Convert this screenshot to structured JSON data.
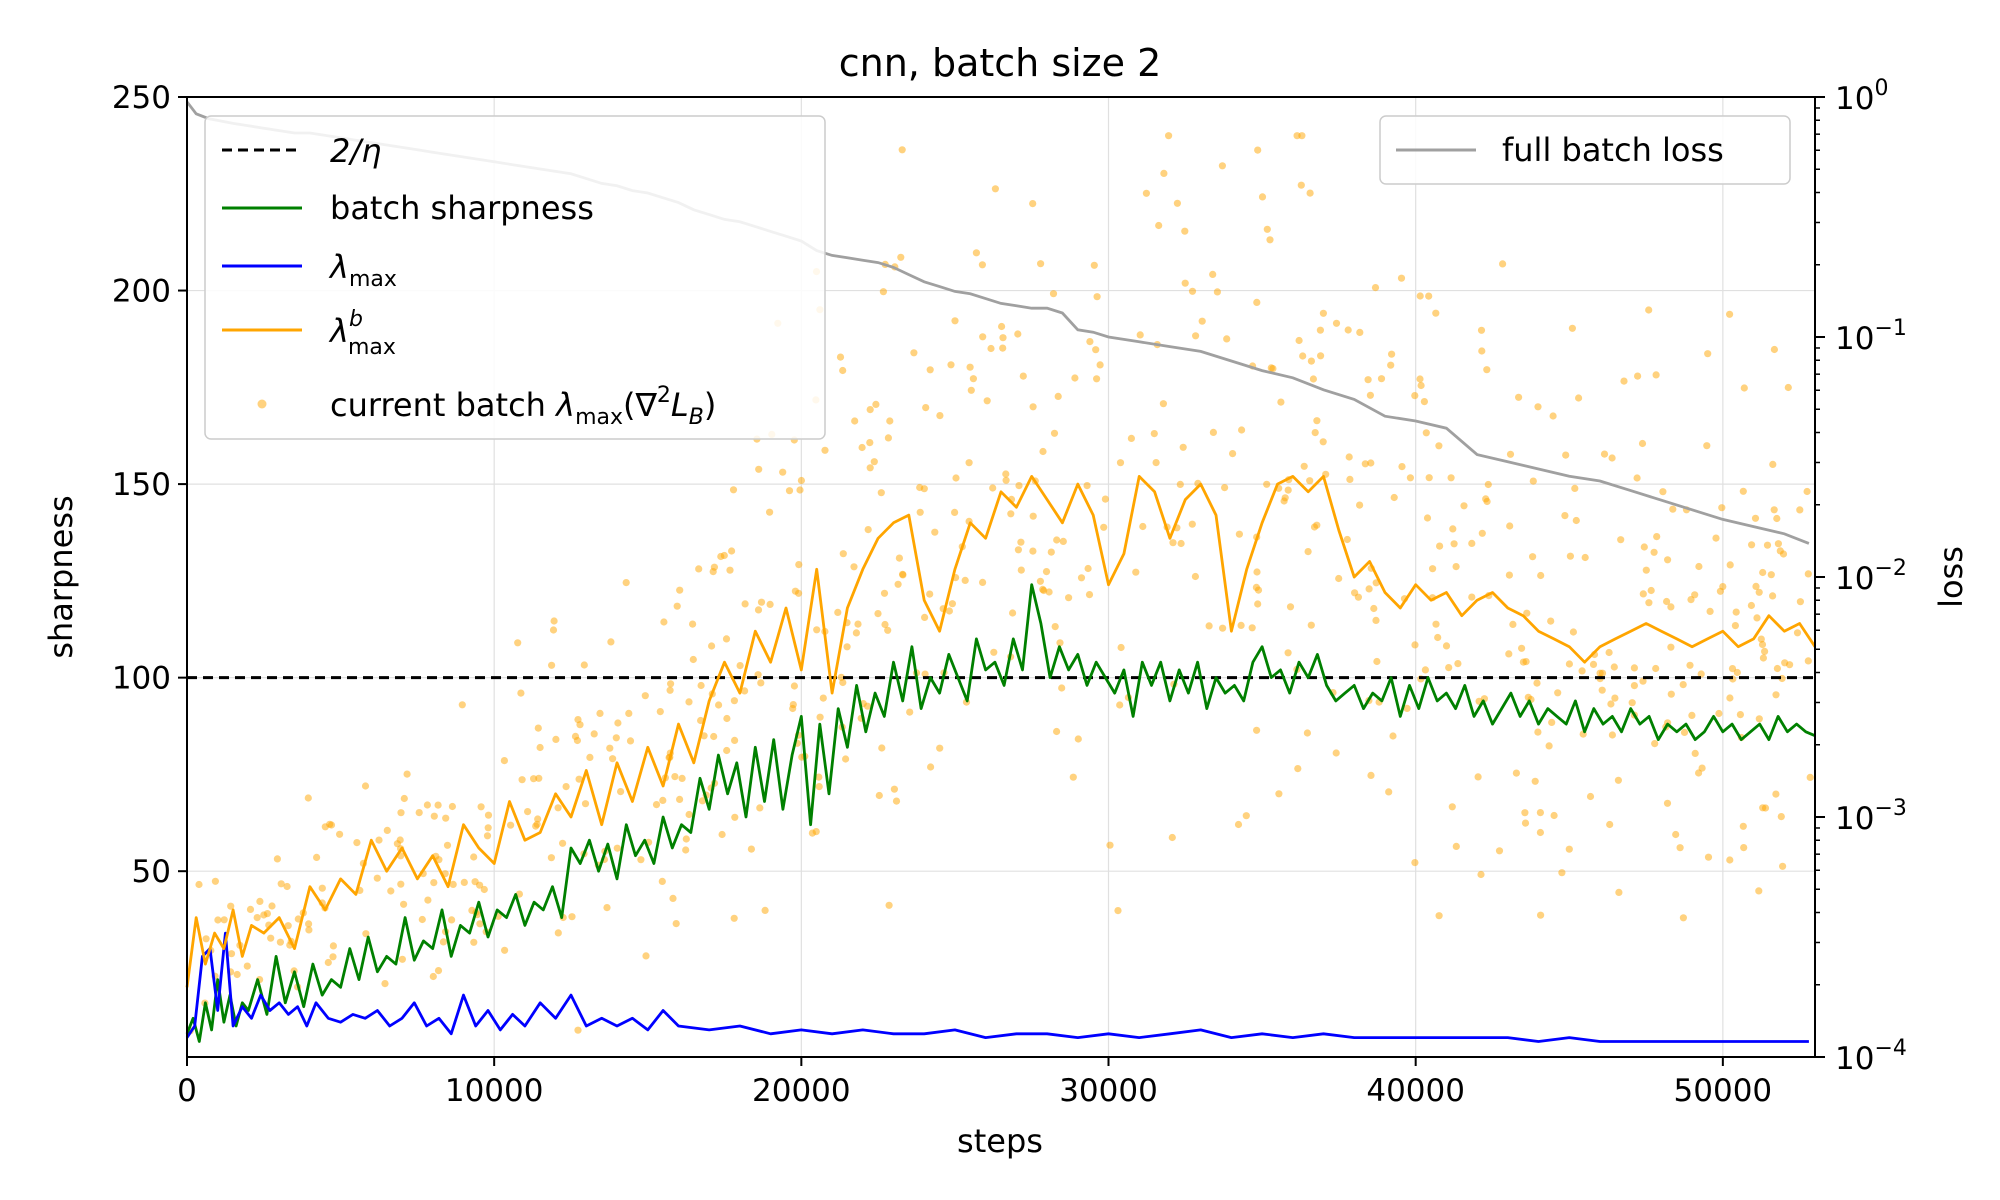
{
  "chart_data": {
    "type": "line",
    "title": "cnn, batch size 2",
    "xlabel": "steps",
    "ylabel": "sharpness",
    "y2label": "loss",
    "xlim": [
      0,
      53000
    ],
    "ylim": [
      2,
      250
    ],
    "y2lim_log10": [
      -4,
      0
    ],
    "x_ticks": [
      "0",
      "10000",
      "20000",
      "30000",
      "40000",
      "50000"
    ],
    "y_ticks": [
      "50",
      "100",
      "150",
      "200",
      "250"
    ],
    "y2_ticks": [
      {
        "base": "10",
        "exp": "0"
      },
      {
        "base": "10",
        "exp": "−1"
      },
      {
        "base": "10",
        "exp": "−2"
      },
      {
        "base": "10",
        "exp": "−3"
      },
      {
        "base": "10",
        "exp": "−4"
      }
    ],
    "grid": true,
    "legend_left": {
      "placement": "upper-left",
      "entries": [
        {
          "key": "threshold",
          "label": "2/η",
          "color": "#000000"
        },
        {
          "key": "batch_sharpness",
          "label": "batch sharpness",
          "color": "#008000"
        },
        {
          "key": "lambda_max",
          "label": "λ",
          "sub": "max",
          "color": "#0000ff"
        },
        {
          "key": "lambda_b_max",
          "label": "λ",
          "sub": "max",
          "sup": "b",
          "color": "#ffa500"
        },
        {
          "key": "current_batch",
          "label": "current batch ",
          "label2": "λ",
          "sub": "max",
          "label3": "(∇",
          "sup2": "2",
          "label4": "L",
          "sub2": "B",
          "label5": ")",
          "color": "#ffa500"
        }
      ]
    },
    "legend_right": {
      "placement": "upper-right",
      "entries": [
        {
          "key": "full_batch_loss",
          "label": "full batch loss",
          "color": "#a0a0a0"
        }
      ]
    },
    "threshold_value": 100,
    "series": [
      {
        "name": "batch sharpness",
        "color": "#008000",
        "x": [
          0,
          200,
          400,
          600,
          800,
          1000,
          1200,
          1400,
          1600,
          1800,
          2000,
          2300,
          2600,
          2900,
          3200,
          3500,
          3800,
          4100,
          4400,
          4700,
          5000,
          5300,
          5600,
          5900,
          6200,
          6500,
          6800,
          7100,
          7400,
          7700,
          8000,
          8300,
          8600,
          8900,
          9200,
          9500,
          9800,
          10100,
          10400,
          10700,
          11000,
          11300,
          11600,
          11900,
          12200,
          12500,
          12800,
          13100,
          13400,
          13700,
          14000,
          14300,
          14600,
          14900,
          15200,
          15500,
          15800,
          16100,
          16400,
          16700,
          17000,
          17300,
          17600,
          17900,
          18200,
          18500,
          18800,
          19100,
          19400,
          19700,
          20000,
          20300,
          20600,
          20900,
          21200,
          21500,
          21800,
          22100,
          22400,
          22700,
          23000,
          23300,
          23600,
          23900,
          24200,
          24500,
          24800,
          25100,
          25400,
          25700,
          26000,
          26300,
          26600,
          26900,
          27200,
          27500,
          27800,
          28100,
          28400,
          28700,
          29000,
          29300,
          29600,
          29900,
          30200,
          30500,
          30800,
          31100,
          31400,
          31700,
          32000,
          32300,
          32600,
          32900,
          33200,
          33500,
          33800,
          34100,
          34400,
          34700,
          35000,
          35300,
          35600,
          35900,
          36200,
          36500,
          36800,
          37100,
          37400,
          37700,
          38000,
          38300,
          38600,
          38900,
          39200,
          39500,
          39800,
          40100,
          40400,
          40700,
          41000,
          41300,
          41600,
          41900,
          42200,
          42500,
          42800,
          43100,
          43400,
          43700,
          44000,
          44300,
          44600,
          44900,
          45200,
          45500,
          45800,
          46100,
          46400,
          46700,
          47000,
          47300,
          47600,
          47900,
          48200,
          48500,
          48800,
          49100,
          49400,
          49700,
          50000,
          50300,
          50600,
          50900,
          51200,
          51500,
          51800,
          52100,
          52400,
          52700,
          53000
        ],
        "values": [
          8,
          12,
          6,
          16,
          9,
          22,
          11,
          18,
          10,
          16,
          14,
          22,
          13,
          28,
          16,
          24,
          15,
          26,
          18,
          22,
          20,
          30,
          22,
          33,
          24,
          28,
          26,
          38,
          27,
          32,
          30,
          40,
          28,
          36,
          34,
          42,
          33,
          40,
          38,
          44,
          36,
          42,
          40,
          46,
          38,
          56,
          52,
          58,
          50,
          57,
          48,
          62,
          54,
          58,
          52,
          64,
          56,
          62,
          60,
          74,
          66,
          80,
          70,
          78,
          64,
          82,
          68,
          84,
          66,
          80,
          90,
          62,
          88,
          70,
          92,
          82,
          98,
          86,
          96,
          90,
          104,
          94,
          108,
          92,
          100,
          96,
          106,
          100,
          94,
          110,
          102,
          104,
          98,
          110,
          102,
          124,
          114,
          100,
          108,
          102,
          106,
          98,
          104,
          100,
          96,
          102,
          90,
          104,
          98,
          104,
          94,
          102,
          96,
          104,
          92,
          100,
          96,
          98,
          94,
          104,
          108,
          100,
          102,
          96,
          104,
          100,
          106,
          98,
          94,
          96,
          98,
          92,
          96,
          94,
          100,
          90,
          98,
          92,
          100,
          94,
          96,
          92,
          98,
          90,
          94,
          88,
          92,
          96,
          90,
          94,
          88,
          92,
          90,
          88,
          94,
          86,
          92,
          88,
          90,
          86,
          92,
          88,
          90,
          84,
          88,
          86,
          88,
          84,
          86,
          90,
          86,
          88,
          84,
          86,
          88,
          84,
          90,
          86,
          88,
          86,
          85
        ],
        "_note": "noisy green line (batch sharpness)"
      },
      {
        "name": "λmax",
        "color": "#0000ff",
        "x": [
          0,
          250,
          500,
          750,
          1000,
          1250,
          1500,
          1800,
          2100,
          2400,
          2700,
          3000,
          3300,
          3600,
          3900,
          4200,
          4600,
          5000,
          5400,
          5800,
          6200,
          6600,
          7000,
          7400,
          7800,
          8200,
          8600,
          9000,
          9400,
          9800,
          10200,
          10600,
          11000,
          11500,
          12000,
          12500,
          13000,
          13500,
          14000,
          14500,
          15000,
          15500,
          16000,
          17000,
          18000,
          19000,
          20000,
          21000,
          22000,
          23000,
          24000,
          25000,
          26000,
          27000,
          28000,
          29000,
          30000,
          31000,
          32000,
          33000,
          34000,
          35000,
          36000,
          37000,
          38000,
          39000,
          40000,
          41000,
          42000,
          43000,
          44000,
          45000,
          46000,
          47000,
          48000,
          49000,
          50000,
          51000,
          52000,
          52800
        ],
        "values": [
          7,
          10,
          28,
          30,
          14,
          34,
          10,
          15,
          12,
          18,
          14,
          16,
          13,
          15,
          10,
          16,
          12,
          11,
          13,
          12,
          14,
          10,
          12,
          16,
          10,
          12,
          8,
          18,
          10,
          14,
          9,
          13,
          10,
          16,
          12,
          18,
          10,
          12,
          10,
          12,
          9,
          14,
          10,
          9,
          10,
          8,
          9,
          8,
          9,
          8,
          8,
          9,
          7,
          8,
          8,
          7,
          8,
          7,
          8,
          9,
          7,
          8,
          7,
          8,
          7,
          7,
          7,
          7,
          7,
          7,
          6,
          7,
          6,
          6,
          6,
          6,
          6,
          6,
          6,
          6
        ],
        "_note": "blue line (λmax)"
      },
      {
        "name": "λbmax",
        "color": "#ffa500",
        "x": [
          0,
          300,
          600,
          900,
          1200,
          1500,
          1800,
          2100,
          2500,
          3000,
          3500,
          4000,
          4500,
          5000,
          5500,
          6000,
          6500,
          7000,
          7500,
          8000,
          8500,
          9000,
          9500,
          10000,
          10500,
          11000,
          11500,
          12000,
          12500,
          13000,
          13500,
          14000,
          14500,
          15000,
          15500,
          16000,
          16500,
          17000,
          17500,
          18000,
          18500,
          19000,
          19500,
          20000,
          20500,
          21000,
          21500,
          22000,
          22500,
          23000,
          23500,
          24000,
          24500,
          25000,
          25500,
          26000,
          26500,
          27000,
          27500,
          28000,
          28500,
          29000,
          29500,
          30000,
          30500,
          31000,
          31500,
          32000,
          32500,
          33000,
          33500,
          34000,
          34500,
          35000,
          35500,
          36000,
          36500,
          37000,
          37500,
          38000,
          38500,
          39000,
          39500,
          40000,
          40500,
          41000,
          41500,
          42000,
          42500,
          43000,
          43500,
          44000,
          44500,
          45000,
          45500,
          46000,
          46500,
          47000,
          47500,
          48000,
          48500,
          49000,
          49500,
          50000,
          50500,
          51000,
          51500,
          52000,
          52500,
          53000
        ],
        "values": [
          20,
          38,
          26,
          34,
          30,
          40,
          28,
          36,
          34,
          38,
          30,
          46,
          40,
          48,
          44,
          58,
          50,
          56,
          48,
          54,
          46,
          62,
          56,
          52,
          68,
          58,
          60,
          70,
          64,
          76,
          62,
          78,
          68,
          82,
          72,
          88,
          78,
          94,
          104,
          96,
          112,
          104,
          118,
          102,
          128,
          96,
          118,
          128,
          136,
          140,
          142,
          120,
          112,
          128,
          140,
          136,
          148,
          144,
          152,
          146,
          140,
          150,
          142,
          124,
          132,
          152,
          148,
          136,
          146,
          150,
          142,
          112,
          128,
          140,
          150,
          152,
          148,
          152,
          138,
          126,
          130,
          122,
          118,
          124,
          120,
          122,
          116,
          120,
          122,
          118,
          116,
          112,
          110,
          108,
          104,
          108,
          110,
          112,
          114,
          112,
          110,
          108,
          110,
          112,
          108,
          110,
          116,
          112,
          114,
          108
        ],
        "_note": "orange line (λbmax)"
      }
    ],
    "full_batch_loss": {
      "name": "full batch loss",
      "color": "#a0a0a0",
      "axis": "right-log",
      "x": [
        0,
        300,
        700,
        1100,
        1500,
        2000,
        2500,
        3000,
        3500,
        4000,
        4500,
        5000,
        5500,
        6000,
        6500,
        7000,
        7500,
        8000,
        8500,
        9000,
        9500,
        10000,
        10500,
        11000,
        11500,
        12000,
        12500,
        13000,
        13500,
        14000,
        14500,
        15000,
        15500,
        16000,
        16500,
        17000,
        17500,
        18000,
        18500,
        19000,
        19500,
        20000,
        20500,
        21000,
        21500,
        22000,
        22500,
        23000,
        23500,
        24000,
        24500,
        25000,
        25500,
        26000,
        26500,
        27000,
        27500,
        28000,
        28500,
        29000,
        29500,
        30000,
        31000,
        32000,
        33000,
        34000,
        35000,
        36000,
        37000,
        38000,
        39000,
        40000,
        41000,
        42000,
        43000,
        44000,
        45000,
        46000,
        47000,
        48000,
        49000,
        50000,
        51000,
        52000,
        52800
      ],
      "log10_values": [
        -0.02,
        -0.07,
        -0.09,
        -0.1,
        -0.11,
        -0.12,
        -0.13,
        -0.14,
        -0.15,
        -0.15,
        -0.16,
        -0.17,
        -0.18,
        -0.19,
        -0.2,
        -0.21,
        -0.22,
        -0.23,
        -0.24,
        -0.25,
        -0.26,
        -0.27,
        -0.28,
        -0.29,
        -0.3,
        -0.31,
        -0.32,
        -0.34,
        -0.36,
        -0.37,
        -0.39,
        -0.4,
        -0.42,
        -0.44,
        -0.47,
        -0.49,
        -0.51,
        -0.52,
        -0.54,
        -0.56,
        -0.58,
        -0.6,
        -0.64,
        -0.66,
        -0.67,
        -0.68,
        -0.69,
        -0.71,
        -0.74,
        -0.77,
        -0.79,
        -0.81,
        -0.82,
        -0.84,
        -0.86,
        -0.87,
        -0.88,
        -0.88,
        -0.9,
        -0.97,
        -0.98,
        -1.0,
        -1.02,
        -1.04,
        -1.06,
        -1.1,
        -1.14,
        -1.17,
        -1.22,
        -1.26,
        -1.33,
        -1.35,
        -1.38,
        -1.49,
        -1.52,
        -1.55,
        -1.58,
        -1.6,
        -1.64,
        -1.68,
        -1.72,
        -1.76,
        -1.79,
        -1.82,
        -1.86
      ]
    },
    "scatter_seed": 12345,
    "scatter_count": 750
  }
}
